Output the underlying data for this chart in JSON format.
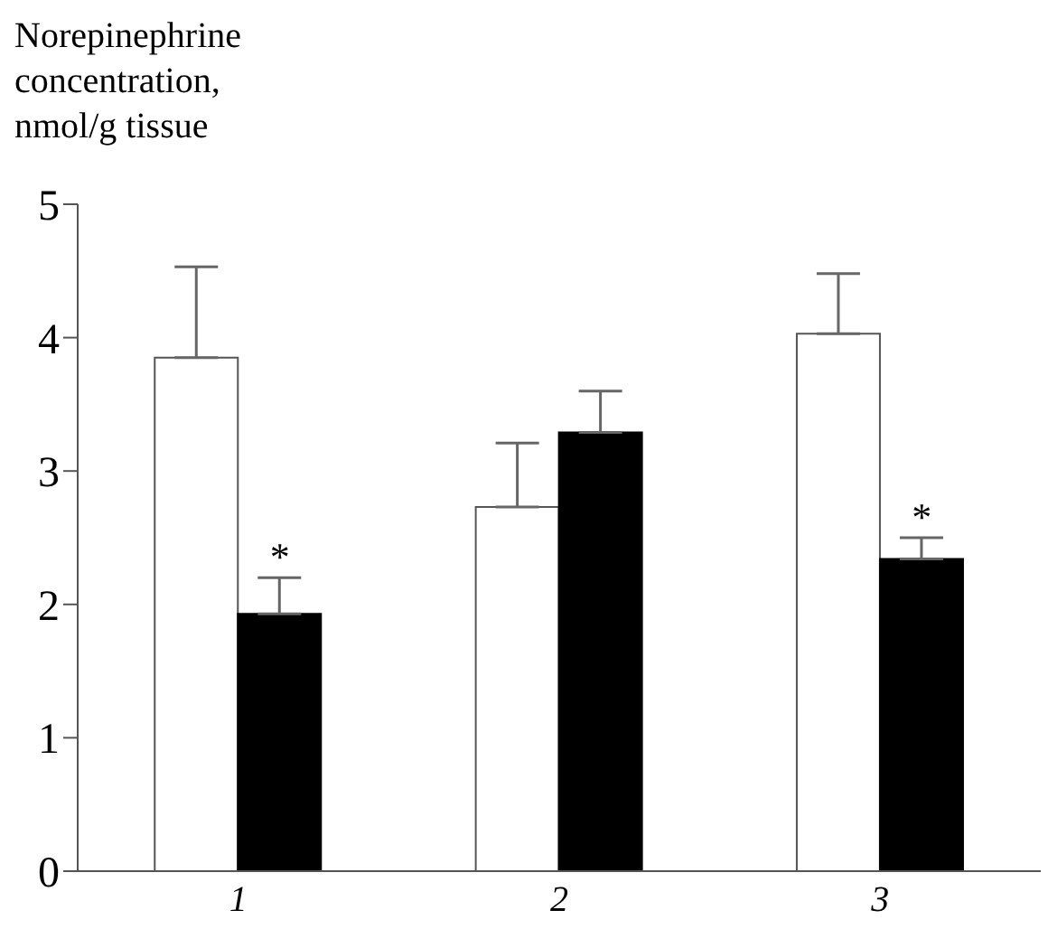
{
  "chart_data": {
    "type": "bar",
    "ylabel": "Norepinephrine concentration, nmol/g tissue",
    "categories": [
      "1",
      "2",
      "3"
    ],
    "series": [
      {
        "color": "#ffffff",
        "values": [
          3.85,
          2.73,
          4.03
        ],
        "errors": [
          [
            3.85,
            4.53
          ],
          [
            2.73,
            3.21
          ],
          [
            4.03,
            4.48
          ]
        ]
      },
      {
        "color": "#000000",
        "values": [
          1.93,
          3.29,
          2.34
        ],
        "errors": [
          [
            1.93,
            2.2
          ],
          [
            3.29,
            3.6
          ],
          [
            2.34,
            2.5
          ]
        ]
      }
    ],
    "ylim": [
      0,
      5
    ],
    "yticks": [
      0,
      1,
      2,
      3,
      4,
      5
    ],
    "grid": false,
    "legend": false,
    "annotations": [
      {
        "text": "*",
        "x": "1",
        "y": 2.2
      },
      {
        "text": "*",
        "x": "3",
        "y": 2.5
      }
    ]
  }
}
